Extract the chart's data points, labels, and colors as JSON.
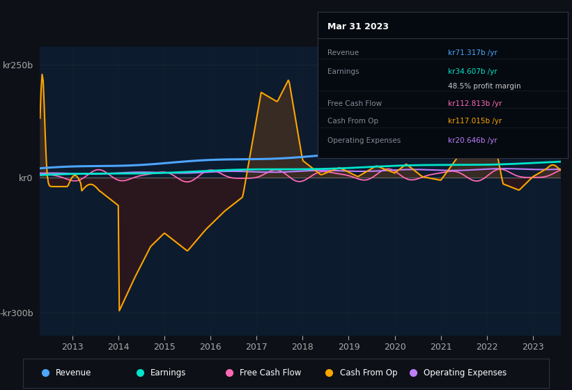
{
  "bg_color": "#0d1117",
  "plot_bg_color": "#0d1b2e",
  "info_box": {
    "title": "Mar 31 2023",
    "rows": [
      {
        "label": "Revenue",
        "value": "kr71.317b /yr",
        "value_color": "#4da6ff"
      },
      {
        "label": "Earnings",
        "value": "kr34.607b /yr",
        "value_color": "#00e5cc"
      },
      {
        "label": "",
        "value": "48.5% profit margin",
        "value_color": "#cccccc"
      },
      {
        "label": "Free Cash Flow",
        "value": "kr112.813b /yr",
        "value_color": "#ff69b4"
      },
      {
        "label": "Cash From Op",
        "value": "kr117.015b /yr",
        "value_color": "#ffa500"
      },
      {
        "label": "Operating Expenses",
        "value": "kr20.646b /yr",
        "value_color": "#bf7fff"
      }
    ]
  },
  "ylim": [
    -350,
    290
  ],
  "yticks": [
    250,
    0,
    -300
  ],
  "ytick_labels": [
    "kr250b",
    "kr0",
    "-kr300b"
  ],
  "xlim": [
    2012.3,
    2023.6
  ],
  "xticks": [
    2013,
    2014,
    2015,
    2016,
    2017,
    2018,
    2019,
    2020,
    2021,
    2022,
    2023
  ],
  "legend": [
    {
      "label": "Revenue",
      "color": "#4da6ff"
    },
    {
      "label": "Earnings",
      "color": "#00e5cc"
    },
    {
      "label": "Free Cash Flow",
      "color": "#ff69b4"
    },
    {
      "label": "Cash From Op",
      "color": "#ffa500"
    },
    {
      "label": "Operating Expenses",
      "color": "#bf7fff"
    }
  ],
  "revenue_color": "#4da6ff",
  "earnings_color": "#00e5cc",
  "fcf_color": "#ff69b4",
  "cashfromop_color": "#ffa500",
  "opex_color": "#bf7fff",
  "fill_pos_color": "#5a3a1a",
  "fill_neg_color": "#3a1515"
}
